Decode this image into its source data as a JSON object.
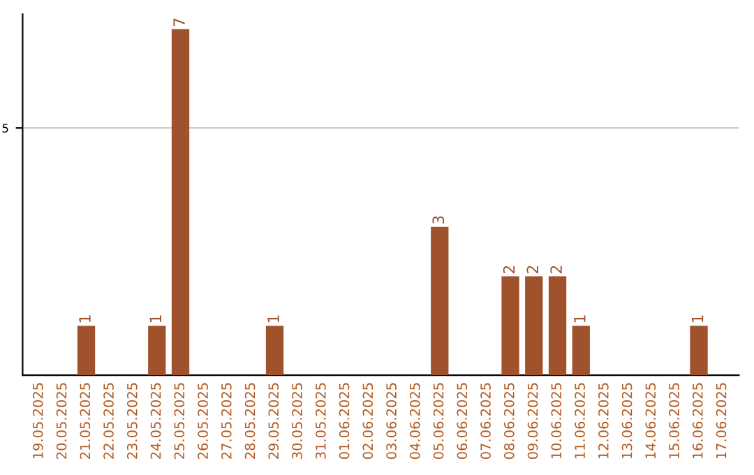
{
  "chart_data": {
    "type": "bar",
    "categories": [
      "19.05.2025",
      "20.05.2025",
      "21.05.2025",
      "22.05.2025",
      "23.05.2025",
      "24.05.2025",
      "25.05.2025",
      "26.05.2025",
      "27.05.2025",
      "28.05.2025",
      "29.05.2025",
      "30.05.2025",
      "31.05.2025",
      "01.06.2025",
      "02.06.2025",
      "03.06.2025",
      "04.06.2025",
      "05.06.2025",
      "06.06.2025",
      "07.06.2025",
      "08.06.2025",
      "09.06.2025",
      "10.06.2025",
      "11.06.2025",
      "12.06.2025",
      "13.06.2025",
      "14.06.2025",
      "15.06.2025",
      "16.06.2025",
      "17.06.2025"
    ],
    "values": [
      0,
      0,
      1,
      0,
      0,
      1,
      7,
      0,
      0,
      0,
      1,
      0,
      0,
      0,
      0,
      0,
      0,
      3,
      0,
      0,
      2,
      2,
      2,
      1,
      0,
      0,
      0,
      0,
      1,
      0
    ],
    "value_labels": [
      null,
      null,
      "1",
      null,
      null,
      "1",
      "7",
      null,
      null,
      null,
      "1",
      null,
      null,
      null,
      null,
      null,
      null,
      "3",
      null,
      null,
      "2",
      "2",
      "2",
      "1",
      null,
      null,
      null,
      null,
      "1",
      null
    ],
    "color": "#a0522d",
    "ylim": [
      0,
      7.3
    ],
    "yticks": [
      5
    ],
    "grid": "y"
  }
}
